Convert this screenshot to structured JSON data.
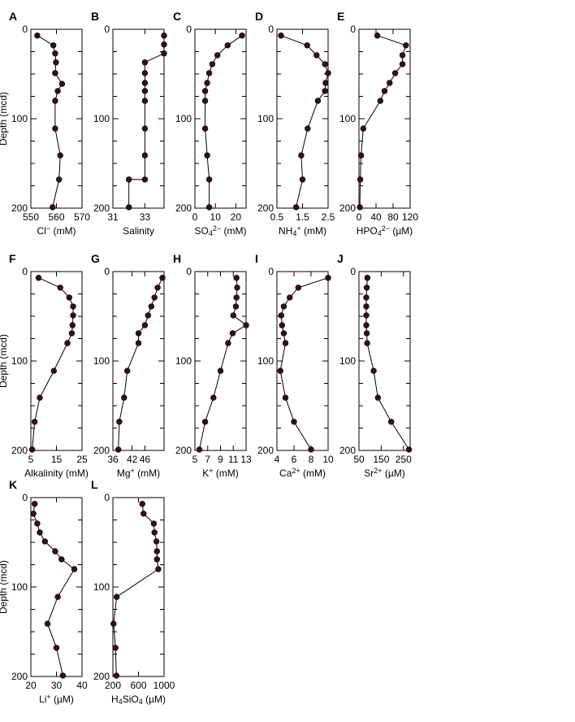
{
  "y_axis": {
    "label": "Depth (mcd)",
    "ticks": [
      "0",
      "100",
      "200"
    ],
    "range": [
      0,
      200
    ]
  },
  "chart_data": [
    {
      "panel": "A",
      "type": "line",
      "xlabel_parts": [
        [
          "Cl",
          ""
        ],
        [
          "−",
          "sup"
        ],
        [
          " (mM)",
          ""
        ]
      ],
      "xticks": [
        550,
        560,
        570
      ],
      "xlim": [
        550,
        570
      ],
      "x": [
        552.5,
        558.8,
        559.5,
        559.8,
        559.5,
        562.2,
        560.5,
        559.5,
        559.5,
        561.5,
        561.0,
        558.5
      ],
      "y": [
        7,
        18,
        27,
        37,
        49,
        61,
        69,
        80,
        111,
        141,
        168,
        199
      ]
    },
    {
      "panel": "B",
      "type": "line",
      "xlabel_parts": [
        [
          "Salinity",
          ""
        ]
      ],
      "xticks": [
        31,
        33
      ],
      "xlim": [
        31,
        34.2
      ],
      "x": [
        34.2,
        34.2,
        34.2,
        33.0,
        33.0,
        33.0,
        33.0,
        33.0,
        33.0,
        33.0,
        33.0,
        32.0,
        32.0
      ],
      "y": [
        7,
        17,
        27,
        37,
        49,
        60,
        69,
        80,
        111,
        141,
        168,
        168,
        199
      ]
    },
    {
      "panel": "C",
      "type": "line",
      "xlabel_parts": [
        [
          "SO",
          ""
        ],
        [
          "4",
          "sub"
        ],
        [
          "2−",
          "sup"
        ],
        [
          " (mM)",
          ""
        ]
      ],
      "xticks": [
        0,
        10,
        20
      ],
      "xlim": [
        0,
        25
      ],
      "x": [
        23.0,
        16.0,
        11.0,
        8.5,
        7.0,
        6.0,
        5.0,
        5.0,
        5.0,
        6.0,
        7.0,
        7.0
      ],
      "y": [
        7,
        18,
        29,
        39,
        49,
        60,
        69,
        80,
        111,
        141,
        168,
        199
      ]
    },
    {
      "panel": "D",
      "type": "line",
      "xlabel_parts": [
        [
          "NH",
          ""
        ],
        [
          "4",
          "sub"
        ],
        [
          "+",
          "sup"
        ],
        [
          " (mM)",
          ""
        ]
      ],
      "xticks": [
        0.5,
        1.5,
        2.5
      ],
      "xticks_text": [
        "0.5",
        "1.5",
        "2.5"
      ],
      "xlim": [
        0.5,
        2.5
      ],
      "x": [
        0.66,
        1.68,
        2.05,
        2.38,
        2.5,
        2.4,
        2.38,
        2.1,
        1.7,
        1.45,
        1.5,
        1.25
      ],
      "y": [
        7,
        18,
        29,
        39,
        49,
        60,
        69,
        80,
        111,
        141,
        168,
        199
      ]
    },
    {
      "panel": "E",
      "type": "line",
      "xlabel_parts": [
        [
          "HPO",
          ""
        ],
        [
          "4",
          "sub"
        ],
        [
          "2−",
          "sup"
        ],
        [
          " (µM)",
          ""
        ]
      ],
      "xticks": [
        0,
        40,
        80,
        120
      ],
      "xlim": [
        0,
        120
      ],
      "x": [
        43,
        110,
        102,
        102,
        85,
        72,
        60,
        50,
        10,
        5,
        3,
        2
      ],
      "y": [
        7,
        18,
        29,
        39,
        49,
        60,
        69,
        80,
        111,
        141,
        168,
        199
      ]
    },
    {
      "panel": "F",
      "type": "line",
      "xlabel_parts": [
        [
          "Alkalinity (mM)",
          ""
        ]
      ],
      "xticks": [
        5,
        15,
        25
      ],
      "xlim": [
        5,
        25
      ],
      "x": [
        8.0,
        16.5,
        20.0,
        21.5,
        21.5,
        21.3,
        21.0,
        19.3,
        14.0,
        8.5,
        6.5,
        5.5
      ],
      "y": [
        7,
        18,
        29,
        39,
        49,
        60,
        69,
        80,
        111,
        141,
        168,
        199
      ]
    },
    {
      "panel": "G",
      "type": "line",
      "xlabel_parts": [
        [
          "Mg",
          ""
        ],
        [
          "+",
          "sup"
        ],
        [
          " (mM)",
          ""
        ]
      ],
      "xticks": [
        36,
        42,
        46
      ],
      "xlim": [
        36,
        52
      ],
      "x": [
        51.5,
        50.0,
        49.0,
        48.0,
        47.0,
        46.0,
        44.0,
        44.0,
        40.5,
        39.5,
        38.0,
        37.7
      ],
      "y": [
        7,
        18,
        29,
        39,
        49,
        60,
        69,
        80,
        111,
        141,
        168,
        199
      ]
    },
    {
      "panel": "H",
      "type": "line",
      "xlabel_parts": [
        [
          "K",
          ""
        ],
        [
          "+",
          "sup"
        ],
        [
          " (mM)",
          ""
        ]
      ],
      "xticks": [
        5,
        7,
        9,
        11,
        13
      ],
      "xlim": [
        5,
        13
      ],
      "x": [
        11.5,
        11.6,
        11.5,
        11.4,
        11.0,
        13.0,
        10.9,
        10.2,
        9.0,
        7.9,
        6.6,
        5.7
      ],
      "y": [
        7,
        18,
        29,
        39,
        49,
        60,
        69,
        80,
        111,
        141,
        168,
        199
      ]
    },
    {
      "panel": "I",
      "type": "line",
      "xlabel_parts": [
        [
          "Ca",
          ""
        ],
        [
          "2+",
          "sup"
        ],
        [
          " (mM)",
          ""
        ]
      ],
      "xticks": [
        4,
        6,
        8,
        10
      ],
      "xlim": [
        4,
        10
      ],
      "x": [
        10.0,
        6.5,
        5.5,
        4.8,
        4.5,
        4.6,
        4.8,
        5.0,
        4.4,
        5.0,
        6.0,
        8.0
      ],
      "y": [
        7,
        18,
        29,
        39,
        49,
        60,
        69,
        80,
        111,
        141,
        168,
        199
      ]
    },
    {
      "panel": "J",
      "type": "line",
      "xlabel_parts": [
        [
          "Sr",
          ""
        ],
        [
          "2+",
          "sup"
        ],
        [
          " (µM)",
          ""
        ]
      ],
      "xticks": [
        50,
        150,
        250
      ],
      "xlim": [
        50,
        280
      ],
      "x": [
        88,
        85,
        83,
        83,
        83,
        83,
        85,
        87,
        116,
        135,
        195,
        275
      ],
      "y": [
        7,
        18,
        29,
        39,
        49,
        60,
        69,
        80,
        111,
        141,
        168,
        199
      ]
    },
    {
      "panel": "K",
      "type": "line",
      "xlabel_parts": [
        [
          "Li",
          ""
        ],
        [
          "+",
          "sup"
        ],
        [
          " (µM)",
          ""
        ]
      ],
      "xticks": [
        20,
        30,
        40
      ],
      "xlim": [
        20,
        40
      ],
      "x": [
        21.5,
        21.0,
        22.5,
        23.5,
        25.5,
        29.5,
        32.0,
        37.0,
        30.5,
        26.5,
        30.0,
        32.5
      ],
      "y": [
        7,
        18,
        29,
        39,
        49,
        60,
        69,
        80,
        111,
        141,
        168,
        199
      ]
    },
    {
      "panel": "L",
      "type": "line",
      "xlabel_parts": [
        [
          "H",
          ""
        ],
        [
          "4",
          "sub"
        ],
        [
          "SiO",
          ""
        ],
        [
          "4",
          "sub"
        ],
        [
          " (µM)",
          ""
        ]
      ],
      "xticks": [
        200,
        600,
        1000
      ],
      "xticks_text": [
        "200",
        "600",
        "1000"
      ],
      "xlim": [
        200,
        1000
      ],
      "x": [
        660,
        680,
        840,
        850,
        880,
        890,
        890,
        910,
        260,
        210,
        240,
        255
      ],
      "y": [
        7,
        18,
        29,
        39,
        49,
        60,
        69,
        80,
        111,
        141,
        168,
        199
      ]
    }
  ],
  "style": {
    "marker_color": "#3a0f0f",
    "line_color": "#000000"
  }
}
